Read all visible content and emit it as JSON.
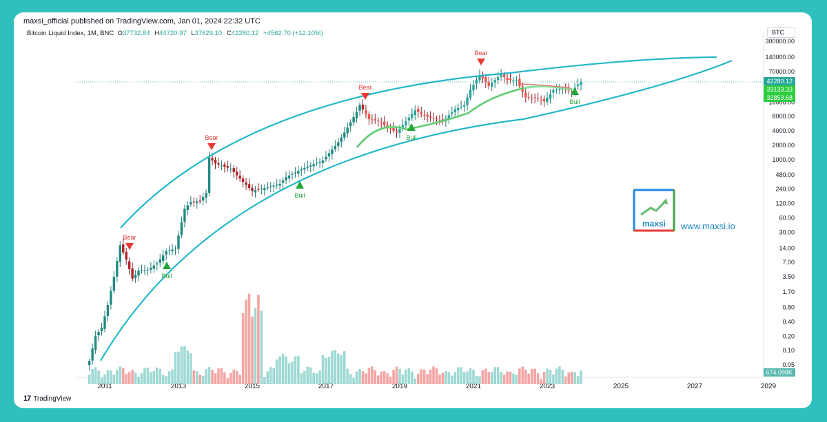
{
  "header": {
    "publish_line": "maxsi_official published on TradingView.com, Jan 01, 2024 22:32 UTC",
    "symbol": "Bitcoin Liquid Index, 1M, BNC",
    "ohlc": {
      "o_label": "O",
      "o": "37732.84",
      "h_label": "H",
      "h": "44720.97",
      "l_label": "L",
      "l": "37629.10",
      "c_label": "C",
      "c": "42280.12",
      "change": "+4562.70 (+12.10%)"
    },
    "currency": "BTC"
  },
  "footer": {
    "brand": "TradingView",
    "brand_mark": "17"
  },
  "watermark": {
    "brand": "maxsi",
    "url": "www.maxsi.io"
  },
  "colors": {
    "up": "#26a69a",
    "down": "#ef5350",
    "channel": "#23b7c9",
    "bear": "#e53935",
    "bull": "#22a83a",
    "green_band": "#7ee08f",
    "red_line": "#e57373"
  },
  "chart_data": {
    "type": "candlestick",
    "title": "",
    "y_scale": "log",
    "y_ticks": [
      "300000.00",
      "140000.00",
      "70000.00",
      "16000.00",
      "8000.00",
      "4000.00",
      "2000.00",
      "1000.00",
      "480.00",
      "240.00",
      "120.00",
      "60.00",
      "30.00",
      "14.00",
      "7.00",
      "3.50",
      "1.70",
      "0.80",
      "0.40",
      "0.20",
      "0.10",
      "0.05"
    ],
    "x_ticks": [
      "2011",
      "2013",
      "2015",
      "2017",
      "2019",
      "2021",
      "2023",
      "2025",
      "2027",
      "2029"
    ],
    "price_labels": [
      {
        "text": "42280.12",
        "value": 42280.12
      },
      {
        "text": "33133.33",
        "value": 33133.33
      },
      {
        "text": "32853.68",
        "value": 32853.68
      }
    ],
    "volume_label": "674.098K",
    "annotations": [
      {
        "label": "Bear",
        "date": "2011-06",
        "price": 18
      },
      {
        "label": "Bull",
        "date": "2012-09",
        "price": 6
      },
      {
        "label": "Bear",
        "date": "2013-12",
        "price": 1000
      },
      {
        "label": "Bull",
        "date": "2016-06",
        "price": 560
      },
      {
        "label": "Bear",
        "date": "2018-01",
        "price": 15000
      },
      {
        "label": "Bull",
        "date": "2019-06",
        "price": 4500
      },
      {
        "label": "Bear",
        "date": "2021-06",
        "price": 75000
      },
      {
        "label": "Bull",
        "date": "2023-12",
        "price": 27000
      }
    ],
    "monthly_close": [
      {
        "date": "2010-08",
        "close": 0.06
      },
      {
        "date": "2010-10",
        "close": 0.2
      },
      {
        "date": "2010-12",
        "close": 0.3
      },
      {
        "date": "2011-02",
        "close": 0.9
      },
      {
        "date": "2011-04",
        "close": 3.5
      },
      {
        "date": "2011-06",
        "close": 16
      },
      {
        "date": "2011-08",
        "close": 8
      },
      {
        "date": "2011-10",
        "close": 3.2
      },
      {
        "date": "2011-12",
        "close": 4.7
      },
      {
        "date": "2012-03",
        "close": 4.9
      },
      {
        "date": "2012-06",
        "close": 6.7
      },
      {
        "date": "2012-09",
        "close": 12
      },
      {
        "date": "2012-12",
        "close": 13.5
      },
      {
        "date": "2013-03",
        "close": 93
      },
      {
        "date": "2013-05",
        "close": 129
      },
      {
        "date": "2013-08",
        "close": 135
      },
      {
        "date": "2013-10",
        "close": 200
      },
      {
        "date": "2013-11",
        "close": 1100
      },
      {
        "date": "2014-01",
        "close": 830
      },
      {
        "date": "2014-06",
        "close": 640
      },
      {
        "date": "2014-10",
        "close": 340
      },
      {
        "date": "2015-01",
        "close": 220
      },
      {
        "date": "2015-06",
        "close": 260
      },
      {
        "date": "2015-10",
        "close": 310
      },
      {
        "date": "2015-12",
        "close": 430
      },
      {
        "date": "2016-06",
        "close": 670
      },
      {
        "date": "2016-12",
        "close": 960
      },
      {
        "date": "2017-05",
        "close": 2300
      },
      {
        "date": "2017-08",
        "close": 4700
      },
      {
        "date": "2017-11",
        "close": 10000
      },
      {
        "date": "2017-12",
        "close": 14000
      },
      {
        "date": "2018-03",
        "close": 7000
      },
      {
        "date": "2018-06",
        "close": 6400
      },
      {
        "date": "2018-11",
        "close": 4000
      },
      {
        "date": "2018-12",
        "close": 3700
      },
      {
        "date": "2019-06",
        "close": 10800
      },
      {
        "date": "2019-09",
        "close": 8300
      },
      {
        "date": "2019-12",
        "close": 7200
      },
      {
        "date": "2020-03",
        "close": 6400
      },
      {
        "date": "2020-07",
        "close": 11300
      },
      {
        "date": "2020-10",
        "close": 13800
      },
      {
        "date": "2020-12",
        "close": 29000
      },
      {
        "date": "2021-03",
        "close": 58800
      },
      {
        "date": "2021-06",
        "close": 35000
      },
      {
        "date": "2021-10",
        "close": 61300
      },
      {
        "date": "2021-12",
        "close": 46300
      },
      {
        "date": "2022-03",
        "close": 45500
      },
      {
        "date": "2022-06",
        "close": 19900
      },
      {
        "date": "2022-09",
        "close": 19400
      },
      {
        "date": "2022-12",
        "close": 16500
      },
      {
        "date": "2023-03",
        "close": 28500
      },
      {
        "date": "2023-06",
        "close": 30500
      },
      {
        "date": "2023-09",
        "close": 27000
      },
      {
        "date": "2023-11",
        "close": 37700
      },
      {
        "date": "2023-12",
        "close": 42280
      }
    ],
    "volume_bars": "monthly volume histogram, up months teal and down months red"
  }
}
